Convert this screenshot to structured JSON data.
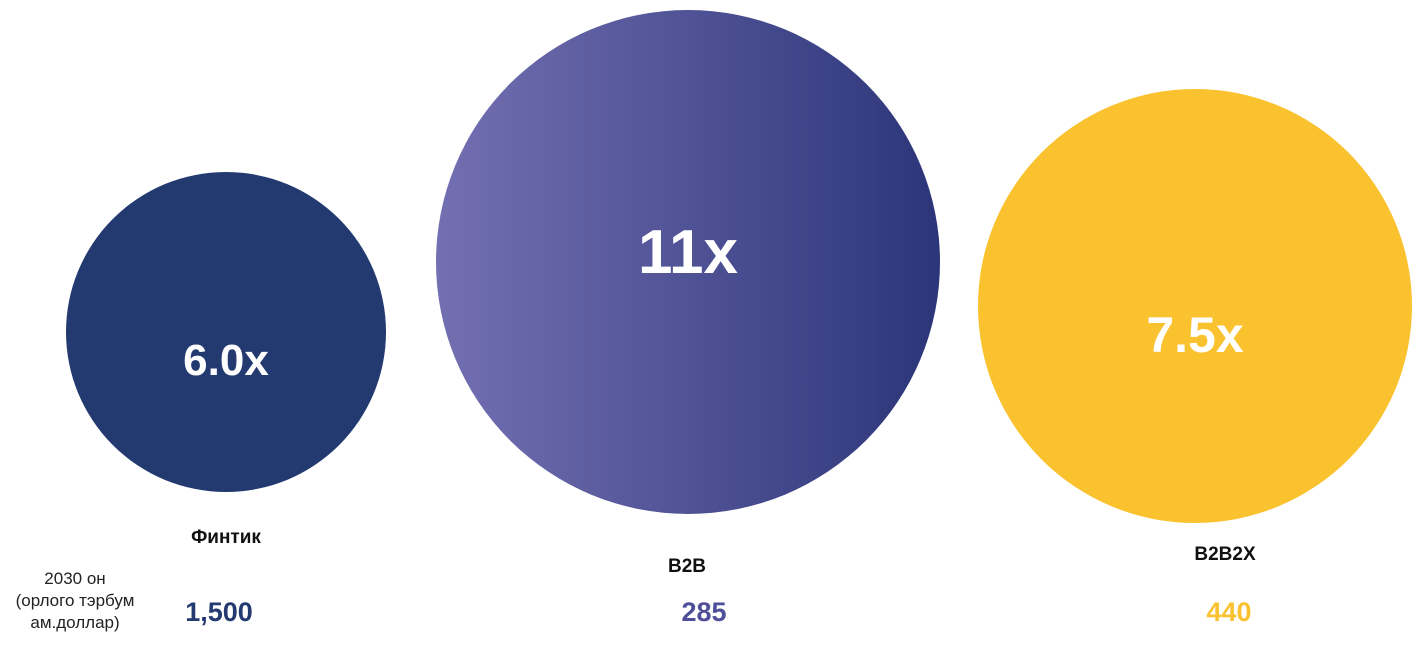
{
  "chart_data": {
    "type": "bubble",
    "row_label": "2030 он\n(орлого тэрбум\nам.доллар)",
    "series": [
      {
        "category": "Финтик",
        "multiple": "6.0x",
        "value": "1,500",
        "color": "#223a70"
      },
      {
        "category": "B2B",
        "multiple": "11x",
        "value": "285",
        "color": "#4e4e99",
        "gradient": [
          "#7370b2",
          "#2c3579"
        ]
      },
      {
        "category": "B2B2X",
        "multiple": "7.5x",
        "value": "440",
        "color": "#fbc22f"
      }
    ]
  }
}
